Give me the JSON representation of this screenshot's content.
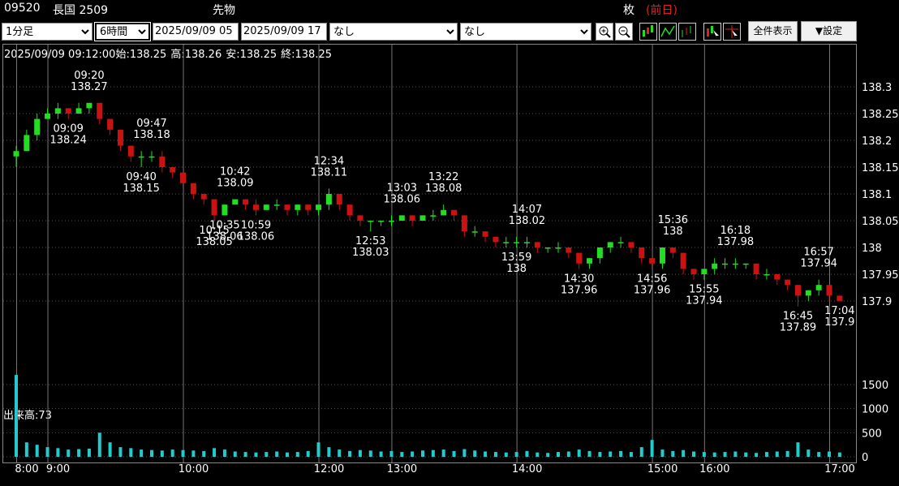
{
  "header": {
    "code": "09520",
    "name": "長国 2509",
    "kind": "先物",
    "unit": "枚",
    "prev": "(前日)"
  },
  "toolbar": {
    "interval": "1分足",
    "span": "6時間",
    "from": "2025/09/09 05",
    "to": "2025/09/09 17",
    "indicator1": "なし",
    "indicator2": "なし",
    "show_all": "全件表示",
    "settings": "▼設定"
  },
  "chart_data": {
    "type": "candlestick",
    "info": {
      "datetime": "2025/09/09 09:12:00",
      "open_label": "始:",
      "open": 138.25,
      "high_label": "高:",
      "high": 138.26,
      "low_label": "安:",
      "low": 138.25,
      "close_label": "終:",
      "close": 138.25
    },
    "categories": [
      "8:00",
      null,
      null,
      "9:00",
      null,
      null,
      null,
      null,
      null,
      null,
      null,
      null,
      null,
      null,
      null,
      null,
      "10:00",
      null,
      null,
      null,
      null,
      null,
      null,
      null,
      null,
      null,
      null,
      null,
      null,
      "12:00",
      null,
      null,
      null,
      null,
      null,
      null,
      "13:00",
      null,
      null,
      null,
      null,
      null,
      null,
      null,
      null,
      null,
      null,
      null,
      "14:00",
      null,
      null,
      null,
      null,
      null,
      null,
      null,
      null,
      null,
      null,
      null,
      null,
      "15:00",
      null,
      null,
      null,
      null,
      "16:00",
      null,
      null,
      null,
      null,
      null,
      null,
      null,
      null,
      null,
      null,
      null,
      "17:00",
      null
    ],
    "open": [
      138.17,
      138.18,
      138.21,
      138.24,
      138.25,
      138.26,
      138.25,
      138.26,
      138.27,
      138.24,
      138.22,
      138.19,
      138.17,
      138.17,
      138.17,
      138.15,
      138.14,
      138.12,
      138.1,
      138.09,
      138.06,
      138.08,
      138.09,
      138.08,
      138.07,
      138.08,
      138.08,
      138.07,
      138.08,
      138.07,
      138.08,
      138.1,
      138.08,
      138.06,
      138.05,
      138.05,
      138.05,
      138.05,
      138.06,
      138.05,
      138.06,
      138.06,
      138.07,
      138.06,
      138.03,
      138.03,
      138.02,
      138.01,
      138.01,
      138.01,
      138.01,
      138.0,
      138.0,
      138.0,
      137.99,
      137.97,
      137.98,
      138.0,
      138.01,
      138.01,
      138.0,
      137.98,
      137.97,
      138.0,
      137.99,
      137.96,
      137.95,
      137.96,
      137.97,
      137.97,
      137.97,
      137.97,
      137.95,
      137.95,
      137.94,
      137.93,
      137.91,
      137.92,
      137.93,
      137.91
    ],
    "high": [
      138.19,
      138.22,
      138.25,
      138.26,
      138.27,
      138.26,
      138.27,
      138.27,
      138.27,
      138.24,
      138.22,
      138.19,
      138.18,
      138.18,
      138.18,
      138.15,
      138.14,
      138.12,
      138.1,
      138.09,
      138.08,
      138.09,
      138.09,
      138.09,
      138.08,
      138.09,
      138.08,
      138.08,
      138.08,
      138.08,
      138.11,
      138.1,
      138.08,
      138.06,
      138.05,
      138.05,
      138.06,
      138.06,
      138.06,
      138.06,
      138.07,
      138.08,
      138.07,
      138.06,
      138.04,
      138.03,
      138.02,
      138.02,
      138.02,
      138.02,
      138.01,
      138.0,
      138.01,
      138.0,
      137.99,
      137.98,
      138.0,
      138.01,
      138.02,
      138.01,
      138.0,
      137.98,
      138.0,
      138.0,
      137.99,
      137.96,
      137.96,
      137.98,
      137.98,
      137.98,
      137.97,
      137.97,
      137.96,
      137.95,
      137.94,
      137.93,
      137.92,
      137.94,
      137.93,
      137.91
    ],
    "low": [
      138.15,
      138.18,
      138.2,
      138.24,
      138.24,
      138.24,
      138.25,
      138.25,
      138.23,
      138.21,
      138.18,
      138.16,
      138.15,
      138.16,
      138.14,
      138.13,
      138.11,
      138.09,
      138.08,
      138.05,
      138.06,
      138.08,
      138.07,
      138.06,
      138.07,
      138.07,
      138.06,
      138.06,
      138.06,
      138.06,
      138.07,
      138.07,
      138.05,
      138.04,
      138.03,
      138.04,
      138.04,
      138.05,
      138.04,
      138.05,
      138.05,
      138.06,
      138.05,
      138.02,
      138.02,
      138.01,
      138.0,
      138.0,
      138.0,
      138.0,
      137.99,
      137.99,
      137.99,
      137.98,
      137.96,
      137.96,
      137.97,
      137.99,
      138.0,
      137.99,
      137.97,
      137.96,
      137.96,
      137.98,
      137.95,
      137.94,
      137.94,
      137.95,
      137.96,
      137.96,
      137.96,
      137.94,
      137.94,
      137.93,
      137.92,
      137.89,
      137.9,
      137.91,
      137.9,
      137.9
    ],
    "close": [
      138.18,
      138.21,
      138.24,
      138.25,
      138.26,
      138.25,
      138.26,
      138.27,
      138.24,
      138.22,
      138.19,
      138.17,
      138.17,
      138.17,
      138.15,
      138.14,
      138.12,
      138.1,
      138.09,
      138.06,
      138.08,
      138.09,
      138.08,
      138.07,
      138.08,
      138.08,
      138.07,
      138.08,
      138.07,
      138.08,
      138.1,
      138.08,
      138.06,
      138.05,
      138.05,
      138.05,
      138.05,
      138.06,
      138.05,
      138.06,
      138.06,
      138.07,
      138.06,
      138.03,
      138.03,
      138.02,
      138.01,
      138.01,
      138.01,
      138.01,
      138.0,
      138.0,
      138.0,
      137.99,
      137.97,
      137.98,
      138.0,
      138.01,
      138.01,
      138.0,
      137.98,
      137.97,
      138.0,
      137.99,
      137.96,
      137.95,
      137.96,
      137.97,
      137.97,
      137.97,
      137.97,
      137.95,
      137.95,
      137.94,
      137.93,
      137.91,
      137.92,
      137.93,
      137.91,
      137.9
    ],
    "volume": [
      1700,
      300,
      250,
      200,
      180,
      150,
      160,
      170,
      500,
      300,
      200,
      180,
      150,
      140,
      130,
      150,
      140,
      130,
      120,
      180,
      150,
      110,
      100,
      90,
      100,
      110,
      90,
      100,
      120,
      300,
      200,
      150,
      120,
      140,
      130,
      110,
      120,
      100,
      110,
      130,
      140,
      150,
      120,
      160,
      130,
      110,
      100,
      90,
      100,
      120,
      90,
      80,
      100,
      110,
      150,
      120,
      100,
      110,
      120,
      100,
      200,
      350,
      150,
      120,
      140,
      110,
      100,
      90,
      100,
      110,
      90,
      80,
      100,
      110,
      120,
      300,
      150,
      100,
      110,
      90
    ],
    "up_color": "#22dd22",
    "down_color": "#cc1111",
    "volume_color": "#22cccc",
    "ylim": [
      137.8,
      138.38
    ],
    "yticks": [
      137.9,
      137.95,
      138,
      138.05,
      138.1,
      138.15,
      138.2,
      138.25,
      138.3
    ],
    "volume_ylim": [
      0,
      1800
    ],
    "volume_yticks": [
      0,
      500,
      1000,
      1500
    ],
    "volume_label": {
      "label": "出来高:",
      "value": 73
    },
    "grid": true,
    "annotations": [
      {
        "time": "09:20",
        "value": 138.27
      },
      {
        "time": "09:09",
        "value": 138.24
      },
      {
        "time": "09:47",
        "value": 138.18
      },
      {
        "time": "09:40",
        "value": 138.15
      },
      {
        "time": "10:15",
        "value": 138.05
      },
      {
        "time": "10:42",
        "value": 138.09
      },
      {
        "time": "10:35",
        "value": 138.06
      },
      {
        "time": "10:59",
        "value": 138.06
      },
      {
        "time": "12:34",
        "value": 138.11
      },
      {
        "time": "12:53",
        "value": 138.03
      },
      {
        "time": "13:03",
        "value": 138.06
      },
      {
        "time": "13:22",
        "value": 138.08
      },
      {
        "time": "13:59",
        "value": 138
      },
      {
        "time": "14:07",
        "value": 138.02
      },
      {
        "time": "14:30",
        "value": 137.96
      },
      {
        "time": "14:56",
        "value": 137.96
      },
      {
        "time": "15:36",
        "value": 138
      },
      {
        "time": "15:55",
        "value": 137.94
      },
      {
        "time": "16:18",
        "value": 137.98
      },
      {
        "time": "16:45",
        "value": 137.89
      },
      {
        "time": "16:57",
        "value": 137.94
      },
      {
        "time": "17:04",
        "value": 137.9
      }
    ]
  }
}
